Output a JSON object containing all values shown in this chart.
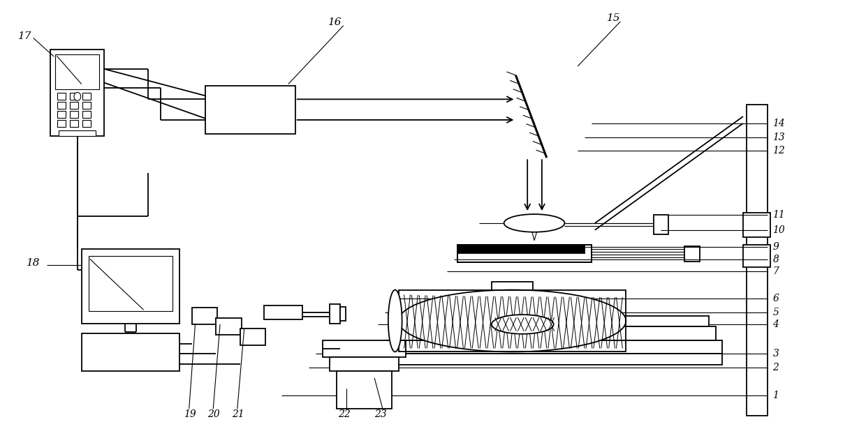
{
  "bg_color": "#ffffff",
  "line_color": "#000000",
  "fig_width": 12.4,
  "fig_height": 6.28,
  "lw_main": 1.3,
  "lw_thin": 0.8,
  "lw_thick": 2.2
}
